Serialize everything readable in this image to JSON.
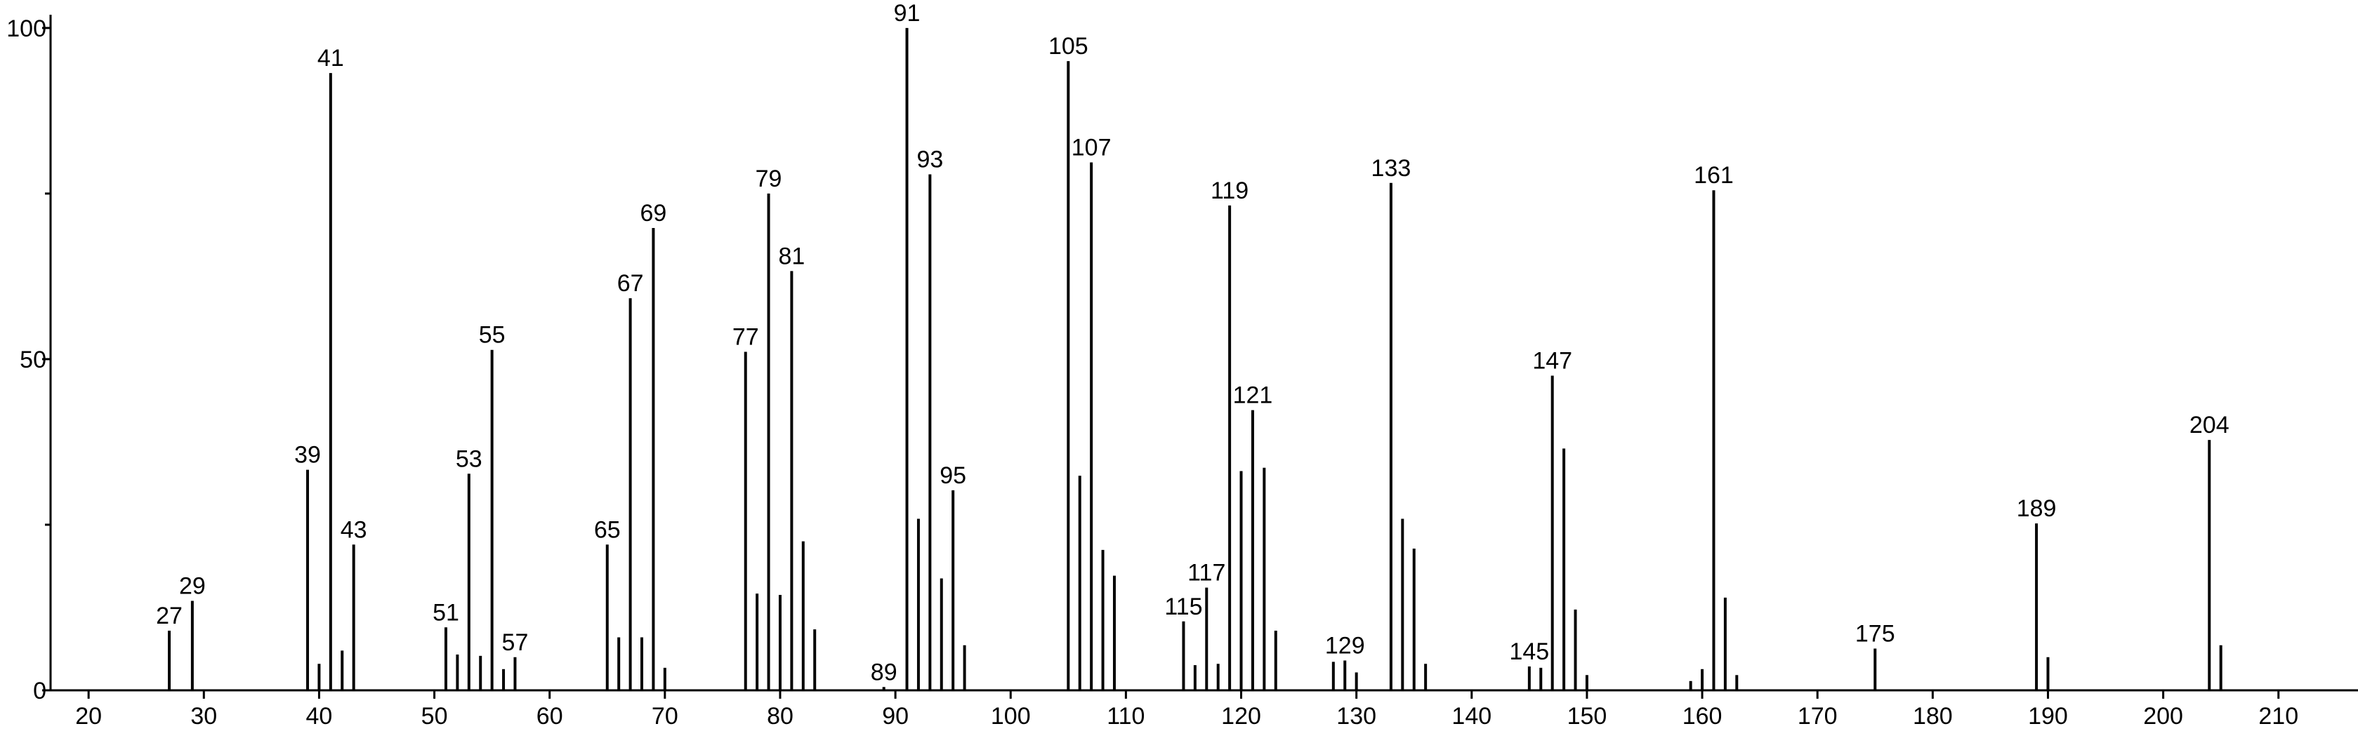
{
  "chart_data": {
    "type": "stem",
    "color": "#000000",
    "x": [
      27,
      29,
      39,
      40,
      41,
      42,
      43,
      51,
      52,
      53,
      54,
      55,
      56,
      57,
      65,
      66,
      67,
      68,
      69,
      70,
      77,
      78,
      79,
      80,
      81,
      82,
      83,
      89,
      91,
      92,
      93,
      94,
      95,
      96,
      105,
      106,
      107,
      108,
      109,
      115,
      116,
      117,
      118,
      119,
      120,
      121,
      122,
      123,
      128,
      129,
      130,
      133,
      134,
      135,
      136,
      145,
      146,
      147,
      148,
      149,
      150,
      159,
      160,
      161,
      162,
      163,
      175,
      189,
      190,
      204,
      205
    ],
    "values": [
      9,
      13.5,
      33.3,
      4,
      93.2,
      6,
      22,
      9.5,
      5.4,
      32.7,
      5.2,
      51.4,
      3.2,
      5,
      22,
      8,
      59.2,
      8,
      69.8,
      3.4,
      51.1,
      14.6,
      75,
      14.4,
      63.3,
      22.5,
      9.2,
      0.5,
      100,
      25.9,
      77.9,
      16.9,
      30.2,
      6.8,
      95,
      32.4,
      79.7,
      21.2,
      17.3,
      10.4,
      3.8,
      15.5,
      4,
      73.2,
      33.1,
      42.3,
      33.6,
      9,
      4.3,
      4.5,
      2.7,
      76.6,
      25.9,
      21.4,
      4,
      3.6,
      3.4,
      47.5,
      36.5,
      12.2,
      2.3,
      1.4,
      3.2,
      75.5,
      14,
      2.3,
      6.3,
      25.2,
      5,
      37.8,
      6.8
    ],
    "point_labels": [
      "27",
      "29",
      "39",
      null,
      "41",
      null,
      "43",
      "51",
      null,
      "53",
      null,
      "55",
      null,
      "57",
      "65",
      null,
      "67",
      null,
      "69",
      null,
      "77",
      null,
      "79",
      null,
      "81",
      null,
      null,
      "89",
      "91",
      null,
      "93",
      null,
      "95",
      null,
      "105",
      null,
      "107",
      null,
      null,
      "115",
      null,
      "117",
      null,
      "119",
      null,
      "121",
      null,
      null,
      null,
      "129",
      null,
      "133",
      null,
      null,
      null,
      "145",
      null,
      "147",
      null,
      null,
      null,
      null,
      null,
      "161",
      null,
      null,
      "175",
      "189",
      null,
      "204",
      null
    ],
    "xlim": [
      16.7,
      216.9
    ],
    "ylim": [
      0,
      102
    ],
    "xticks": [
      20,
      30,
      40,
      50,
      60,
      70,
      80,
      90,
      100,
      110,
      120,
      130,
      140,
      150,
      160,
      170,
      180,
      190,
      200,
      210
    ],
    "yticks": [
      0,
      50,
      100
    ],
    "yminorticks": [
      25,
      75
    ]
  }
}
